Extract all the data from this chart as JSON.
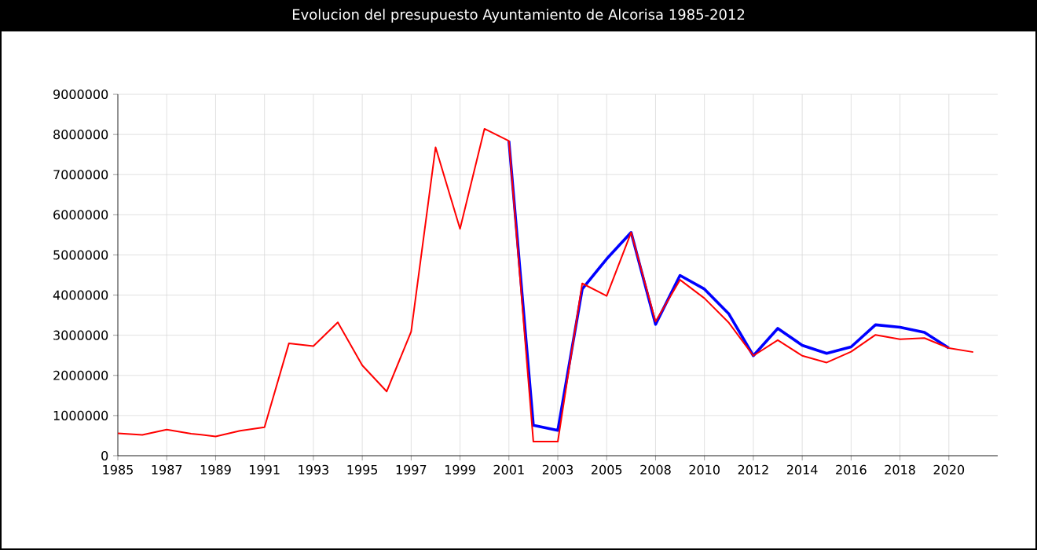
{
  "chart_data": {
    "type": "line",
    "title": "Evolucion del presupuesto Ayuntamiento de Alcorisa 1985-2012",
    "categories": [
      "1985",
      null,
      "1987",
      null,
      "1989",
      null,
      "1991",
      null,
      "1993",
      null,
      "1995",
      null,
      "1997",
      null,
      "1999",
      null,
      "2001",
      null,
      "2003",
      null,
      "2005",
      null,
      "2008",
      null,
      "2010",
      null,
      "2012",
      null,
      "2014",
      null,
      "2016",
      null,
      "2018",
      null,
      "2020",
      null
    ],
    "series": [
      {
        "color": "#0000ff",
        "values": [
          null,
          null,
          null,
          null,
          null,
          null,
          null,
          null,
          null,
          null,
          null,
          null,
          null,
          null,
          null,
          null,
          7840000,
          760000,
          630000,
          4150000,
          4900000,
          5560000,
          3270000,
          4490000,
          4150000,
          3530000,
          2490000,
          3170000,
          2750000,
          2550000,
          2710000,
          3260000,
          3200000,
          3070000,
          2680000,
          null
        ]
      },
      {
        "color": "#ff0000",
        "values": [
          560000,
          520000,
          650000,
          550000,
          480000,
          620000,
          710000,
          2800000,
          2730000,
          3320000,
          2250000,
          1600000,
          3090000,
          7680000,
          5650000,
          8140000,
          7840000,
          350000,
          350000,
          4290000,
          3980000,
          5560000,
          3340000,
          4380000,
          3920000,
          3310000,
          2490000,
          2880000,
          2490000,
          2320000,
          2590000,
          3010000,
          2900000,
          2930000,
          2680000,
          2580000
        ]
      }
    ],
    "ylim": [
      0,
      9000000
    ],
    "yticks": [
      0,
      1000000,
      2000000,
      3000000,
      4000000,
      5000000,
      6000000,
      7000000,
      8000000,
      9000000
    ],
    "grid": true,
    "marker": "none",
    "line_style": "solid"
  }
}
